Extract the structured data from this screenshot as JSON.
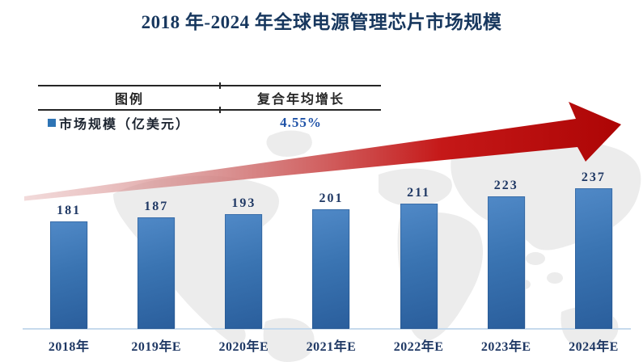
{
  "title": "2018 年-2024 年全球电源管理芯片市场规模",
  "legend_table": {
    "col1_header": "图例",
    "col2_header": "复合年均增长",
    "series_label": "市场规模（亿美元）",
    "cagr_value": "4.55%"
  },
  "chart_data": {
    "type": "bar",
    "title": "2018 年-2024 年全球电源管理芯片市场规模",
    "categories": [
      "2018年",
      "2019年E",
      "2020年E",
      "2021年E",
      "2022年E",
      "2023年E",
      "2024年E"
    ],
    "series": [
      {
        "name": "市场规模（亿美元）",
        "values": [
          181,
          187,
          193,
          201,
          211,
          223,
          237
        ]
      }
    ],
    "annotations": [
      "复合年均增长 4.55%",
      "红色上升趋势箭头"
    ],
    "ylim": [
      0,
      250
    ],
    "grid": false,
    "legend_position": "top-left-table",
    "data_labels": true
  },
  "colors": {
    "title_text": "#17375e",
    "bar_top": "#5089c7",
    "bar_bottom": "#2a5e9c",
    "value_label": "#1f3864",
    "axis_line": "#c6daec",
    "cagr_text": "#2053a8",
    "legend_marker": "#2e74b5",
    "arrow_red": "#c00000",
    "map_gray": "#ececec",
    "table_rule": "#262626"
  }
}
